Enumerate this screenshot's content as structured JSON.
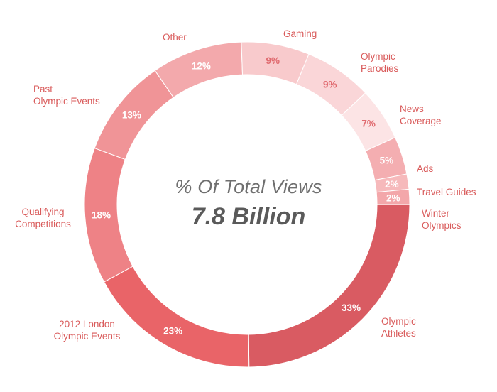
{
  "center": {
    "title": "% Of Total Views",
    "value": "7.8 Billion"
  },
  "chart_data": {
    "type": "pie",
    "categories": [
      "Olympic Athletes",
      "2012 London Olympic Events",
      "Qualifying Competitions",
      "Past Olympic Events",
      "Other",
      "Gaming",
      "Olympic Parodies",
      "News Coverage",
      "Ads",
      "Travel Guides",
      "Winter Olympics"
    ],
    "values": [
      33,
      23,
      18,
      13,
      12,
      9,
      9,
      7,
      5,
      2,
      2
    ],
    "value_labels": [
      "33%",
      "23%",
      "18%",
      "13%",
      "12%",
      "9%",
      "9%",
      "7%",
      "5%",
      "2%",
      "2%"
    ],
    "category_labels": [
      "Olympic\nAthletes",
      "2012 London\nOlympic Events",
      "Qualifying\nCompetitions",
      "Past\nOlympic Events",
      "Other",
      "Gaming",
      "Olympic\nParodies",
      "News\nCoverage",
      "Ads",
      "Travel Guides",
      "Winter\nOlympics"
    ],
    "colors": [
      "#d95b62",
      "#e96468",
      "#ee8286",
      "#f09497",
      "#f3a9ac",
      "#f8cacc",
      "#fad6d8",
      "#fce4e5",
      "#f4aeb1",
      "#f6b9bb",
      "#f3a7aa"
    ],
    "donut": true
  }
}
